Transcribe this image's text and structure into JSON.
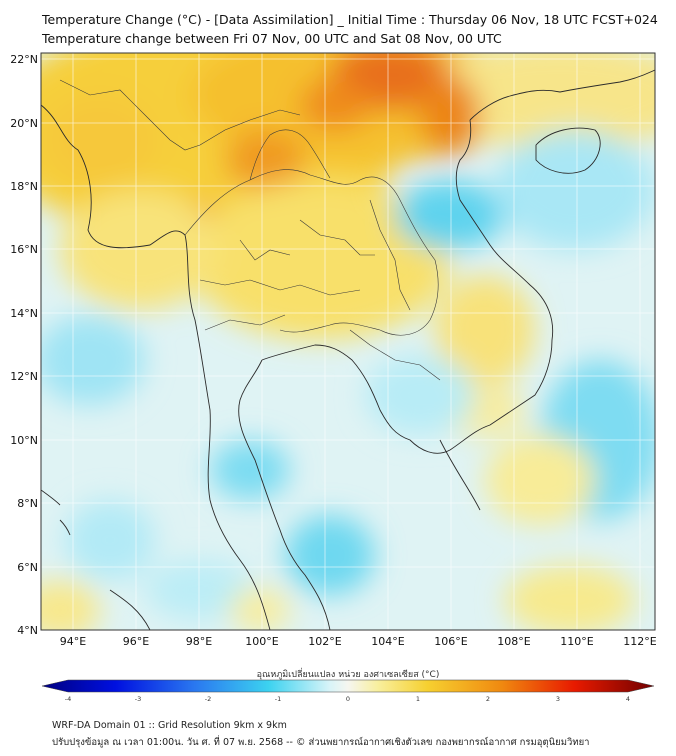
{
  "header": {
    "title_line1": "Temperature Change (°C) - [Data Assimilation] _ Initial Time : Thursday 06 Nov, 18 UTC FCST+024",
    "title_line2": "Temperature change between Fri 07 Nov, 00 UTC and Sat 08 Nov, 00 UTC"
  },
  "map": {
    "lon_labels": [
      "94°E",
      "96°E",
      "98°E",
      "100°E",
      "102°E",
      "104°E",
      "106°E",
      "108°E",
      "110°E",
      "112°E"
    ],
    "lat_labels": [
      "22°N",
      "20°N",
      "18°N",
      "16°N",
      "14°N",
      "12°N",
      "10°N",
      "8°N",
      "6°N",
      "4°N"
    ],
    "lon_range": [
      93,
      112.5
    ],
    "lat_range": [
      4,
      22.2
    ],
    "gridlines": true,
    "colors": {
      "warm_strong": "#e05a10",
      "warm": "#f5b400",
      "warm_light": "#f7e88a",
      "neutral": "#f4f6f0",
      "cool_light": "#bfeef7",
      "cool": "#5ad4f0"
    }
  },
  "colorbar": {
    "label": "อุณหภูมิเปลี่ยนแปลง หน่วย องศาเซลเซียส (°C)",
    "ticks": [
      "-4",
      "-3",
      "-2",
      "-1",
      "0",
      "1",
      "2",
      "3",
      "4"
    ],
    "range": [
      -4,
      4
    ]
  },
  "footer": {
    "line1": "WRF-DA Domain 01 :: Grid Resolution 9km x 9km",
    "line2": "ปรับปรุงข้อมูล ณ เวลา 01:00น. วัน ศ. ที่ 07 พ.ย. 2568 -- © ส่วนพยากรณ์อากาศเชิงตัวเลข กองพยากรณ์อากาศ กรมอุตุนิยมวิทยา"
  }
}
